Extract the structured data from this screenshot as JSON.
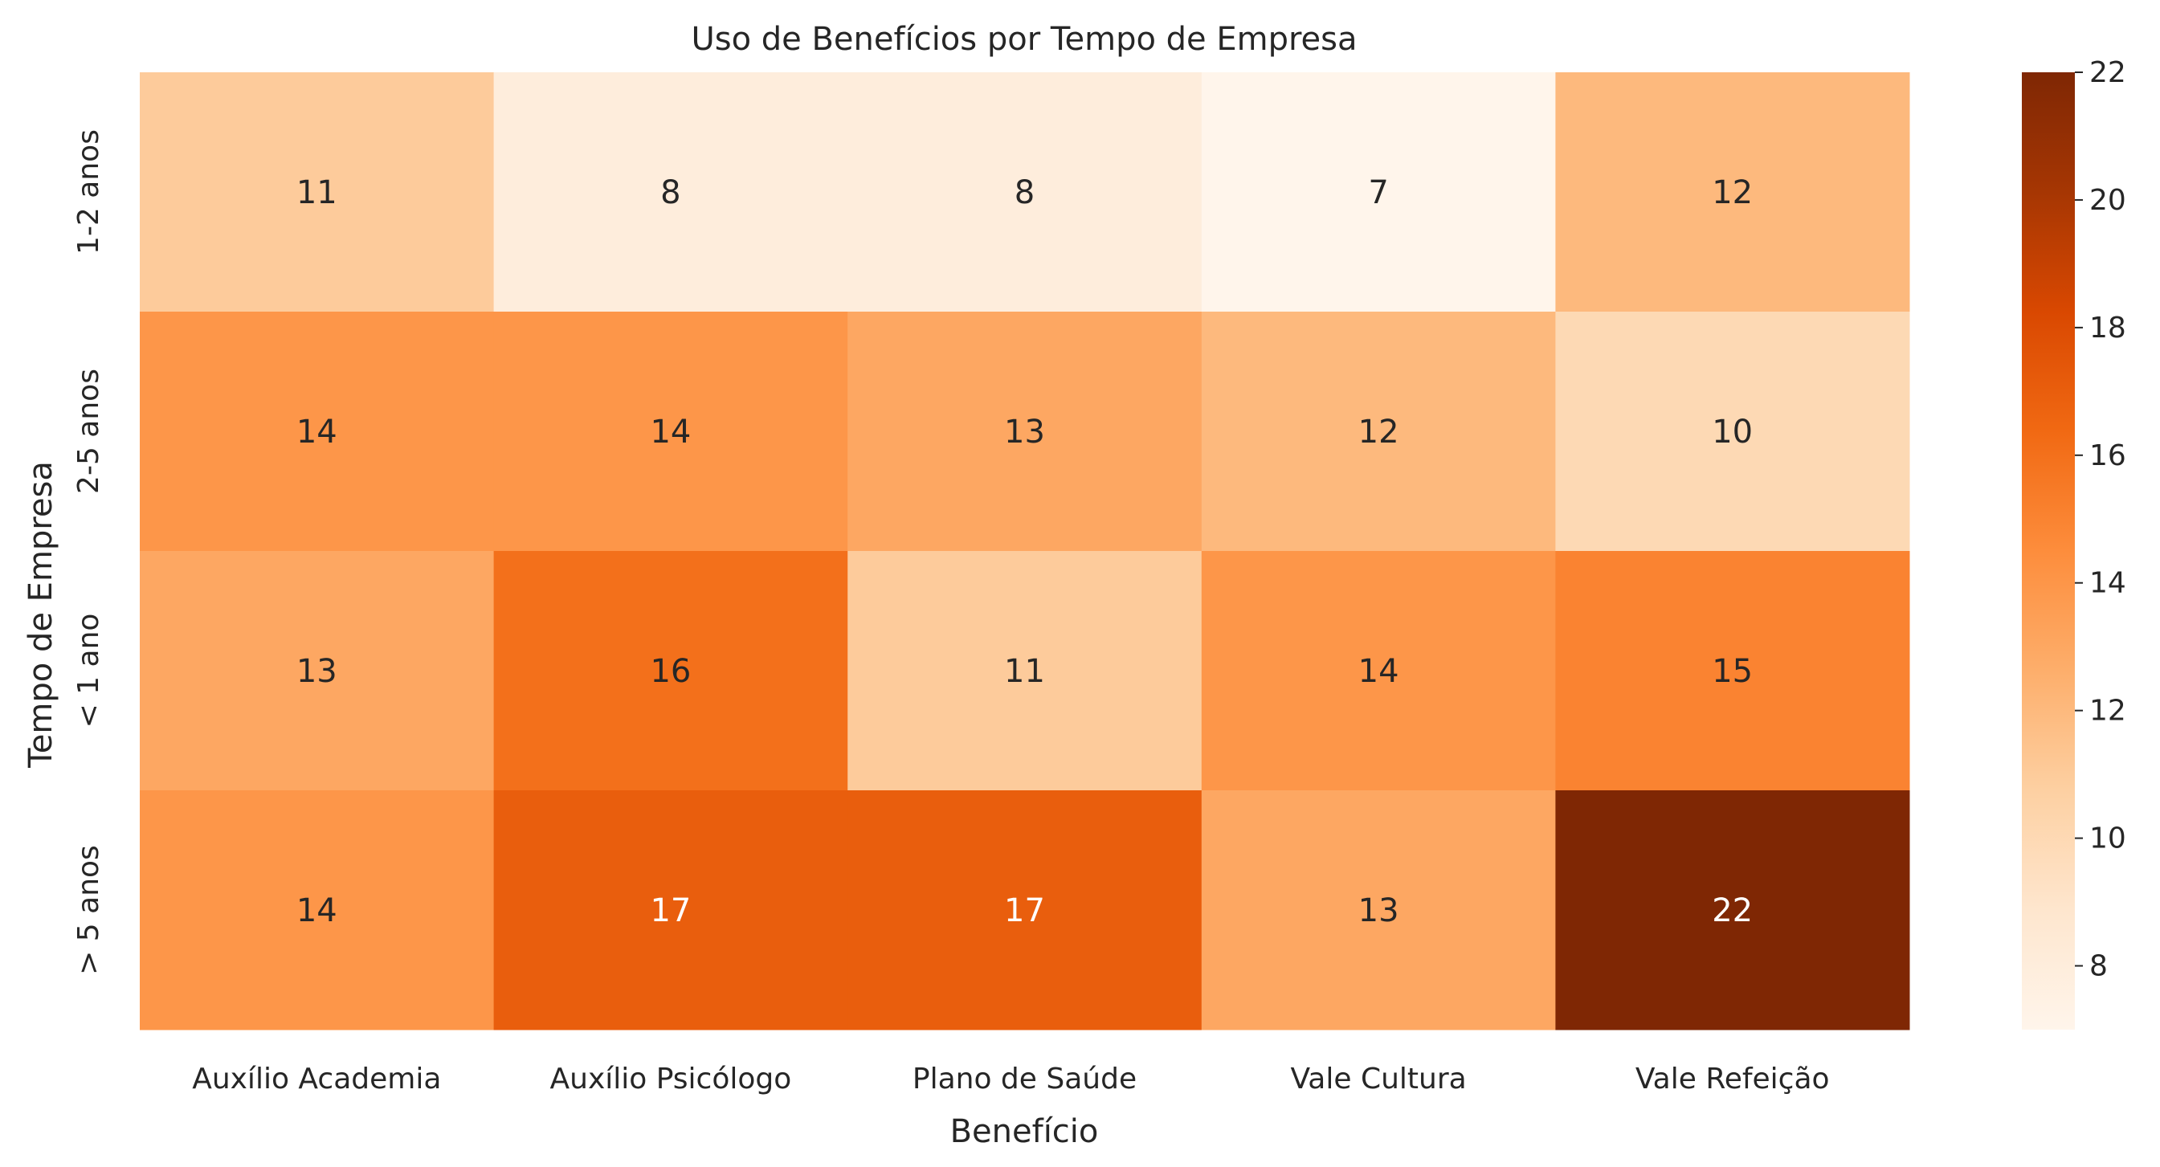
{
  "chart_data": {
    "type": "heatmap",
    "title": "Uso de Benefícios por Tempo de Empresa",
    "xlabel": "Benefício",
    "ylabel": "Tempo de Empresa",
    "x_categories": [
      "Auxílio Academia",
      "Auxílio Psicólogo",
      "Plano de Saúde",
      "Vale Cultura",
      "Vale Refeição"
    ],
    "y_categories": [
      "1-2 anos",
      "2-5 anos",
      "< 1 ano",
      "> 5 anos"
    ],
    "values": [
      [
        11,
        8,
        8,
        7,
        12
      ],
      [
        14,
        14,
        13,
        12,
        10
      ],
      [
        13,
        16,
        11,
        14,
        15
      ],
      [
        14,
        17,
        17,
        13,
        22
      ]
    ],
    "colorbar": {
      "min": 7,
      "max": 22,
      "ticks": [
        8,
        10,
        12,
        14,
        16,
        18,
        20,
        22
      ]
    },
    "colormap": [
      "#fff5eb",
      "#fee6ce",
      "#fdd0a2",
      "#fdae6b",
      "#fd8d3c",
      "#f16913",
      "#d94801",
      "#a63603",
      "#7f2704"
    ],
    "grid": false
  }
}
